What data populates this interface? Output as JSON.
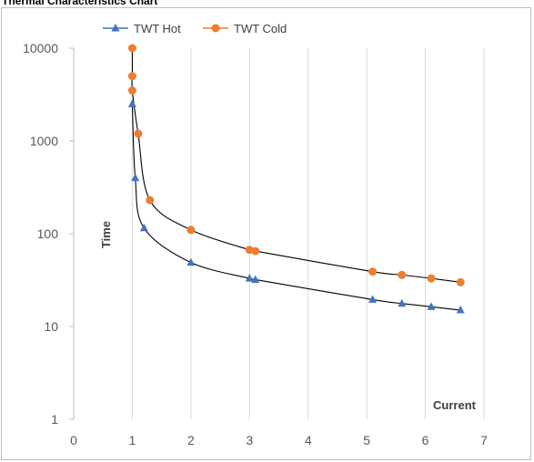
{
  "chart_data": {
    "type": "scatter",
    "title": "Thermal Characteristics Chart",
    "xlabel": "Current",
    "ylabel": "Time",
    "xlim": [
      0,
      7
    ],
    "ylim": [
      1,
      10000
    ],
    "yscale": "log",
    "x_ticks": [
      "0",
      "1",
      "2",
      "3",
      "4",
      "5",
      "6",
      "7"
    ],
    "y_ticks": [
      "1",
      "10",
      "100",
      "1000",
      "10000"
    ],
    "grid": "vertical",
    "legend": "top",
    "series": [
      {
        "name": "TWT Hot",
        "color": "#4472c4",
        "marker": "triangle",
        "x": [
          1.0,
          1.05,
          1.2,
          2.0,
          3.0,
          3.1,
          5.1,
          5.6,
          6.1,
          6.6
        ],
        "y": [
          2500,
          400,
          115,
          49,
          33,
          32,
          19.5,
          17.7,
          16.3,
          15
        ]
      },
      {
        "name": "TWT Cold",
        "color": "#ed7d31",
        "marker": "circle",
        "x": [
          1.0,
          1.0,
          1.0,
          1.1,
          1.3,
          2.0,
          3.0,
          3.1,
          5.1,
          5.6,
          6.1,
          6.6
        ],
        "y": [
          10000,
          5000,
          3500,
          1200,
          230,
          110,
          67,
          65,
          39,
          36,
          33,
          30
        ]
      }
    ]
  }
}
